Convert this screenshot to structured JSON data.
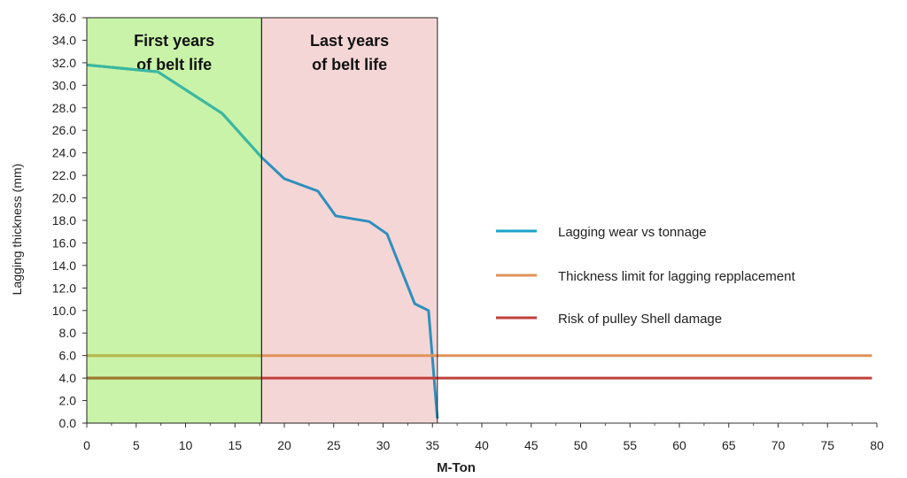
{
  "chart_data": {
    "type": "line",
    "xlabel": "M-Ton",
    "ylabel": "Lagging thickness (mm)",
    "xlim": [
      0,
      80
    ],
    "ylim": [
      0,
      36
    ],
    "x_ticks": [
      "0",
      "5",
      "10",
      "15",
      "20",
      "25",
      "30",
      "35",
      "40",
      "45",
      "50",
      "55",
      "60",
      "65",
      "70",
      "75",
      "80"
    ],
    "y_ticks": [
      "0.0",
      "2.0",
      "4.0",
      "6.0",
      "8.0",
      "10.0",
      "12.0",
      "14.0",
      "16.0",
      "18.0",
      "20.0",
      "22.0",
      "24.0",
      "26.0",
      "28.0",
      "30.0",
      "32.0",
      "34.0",
      "36.0"
    ],
    "zones": [
      {
        "name": "first",
        "label_line1": "First years",
        "label_line2": "of belt life",
        "x_start": 0,
        "x_end": 17.7,
        "color": "#c8f3a8"
      },
      {
        "name": "last",
        "label_line1": "Last years",
        "label_line2": "of belt life",
        "x_start": 17.7,
        "x_end": 35.5,
        "color": "#f5d6d6"
      }
    ],
    "series": [
      {
        "name": "Lagging wear vs tonnage",
        "color": "#2e8fbd",
        "color_in_first_zone": "#3ab8a0",
        "x": [
          0,
          7.2,
          13.7,
          17.7,
          20,
          23.4,
          25.2,
          28.6,
          30.4,
          33.2,
          34.6,
          35.5
        ],
        "values": [
          31.8,
          31.2,
          27.5,
          23.6,
          21.7,
          20.6,
          18.4,
          17.9,
          16.8,
          10.6,
          10.0,
          0.4
        ]
      },
      {
        "name": "Thickness limit for lagging repplacement",
        "color": "#e0925a",
        "color_in_first_zone": "#b5b94a",
        "x": [
          0,
          79.5
        ],
        "values": [
          6.0,
          6.0
        ]
      },
      {
        "name": "Risk of pulley Shell damage",
        "color": "#c0403a",
        "color_in_first_zone": "#9a7a2a",
        "x": [
          0,
          79.5
        ],
        "values": [
          4.0,
          4.0
        ]
      }
    ],
    "legend": [
      {
        "label": "Lagging wear vs tonnage",
        "color": "#1aa3c8"
      },
      {
        "label": "Thickness limit for lagging repplacement",
        "color": "#e0925a"
      },
      {
        "label": "Risk of pulley Shell damage",
        "color": "#c0403a"
      }
    ]
  }
}
